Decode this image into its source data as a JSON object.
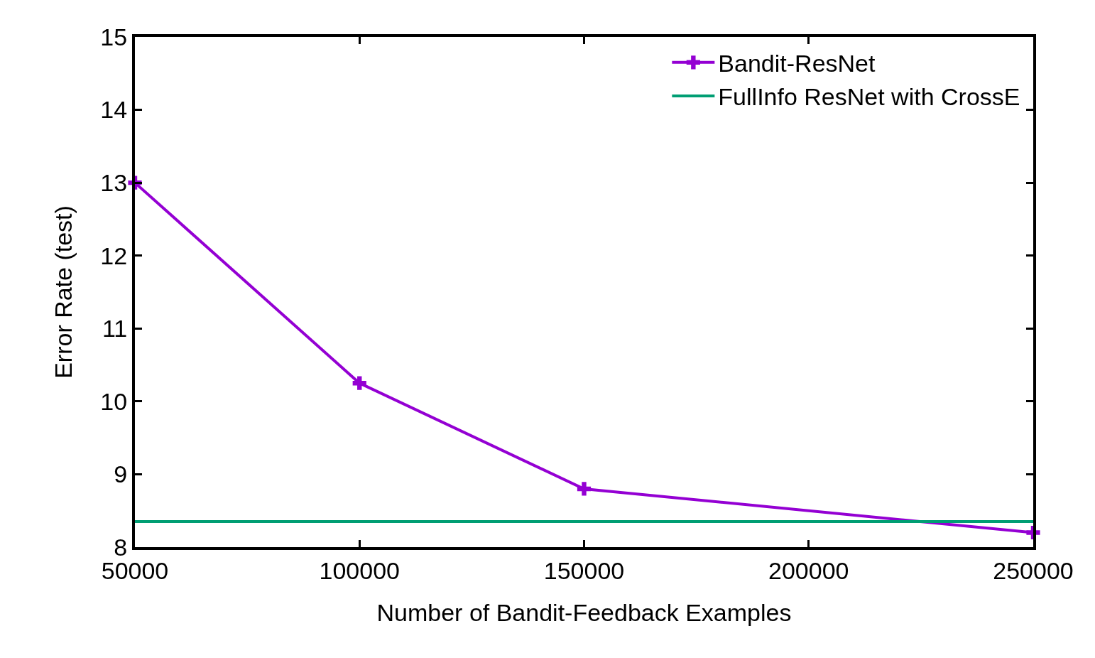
{
  "chart_data": {
    "type": "line",
    "xlabel": "Number of Bandit-Feedback Examples",
    "ylabel": "Error Rate (test)",
    "xlim": [
      50000,
      250000
    ],
    "xticks": [
      50000,
      100000,
      150000,
      200000,
      250000
    ],
    "ylim": [
      8,
      15
    ],
    "yticks": [
      8,
      9,
      10,
      11,
      12,
      13,
      14,
      15
    ],
    "grid": false,
    "legend": "top right",
    "line_style": "solid",
    "series": [
      {
        "name": "Bandit-ResNet",
        "color": "#9400d3",
        "marker": "cross",
        "x": [
          50000,
          100000,
          150000,
          250000
        ],
        "values": [
          13,
          10.25,
          8.8,
          8.2
        ]
      },
      {
        "name": "FullInfo ResNet with CrossE",
        "color": "#009e73",
        "marker": "none",
        "x": [
          50000,
          250000
        ],
        "values": [
          8.35,
          8.35
        ]
      }
    ]
  }
}
